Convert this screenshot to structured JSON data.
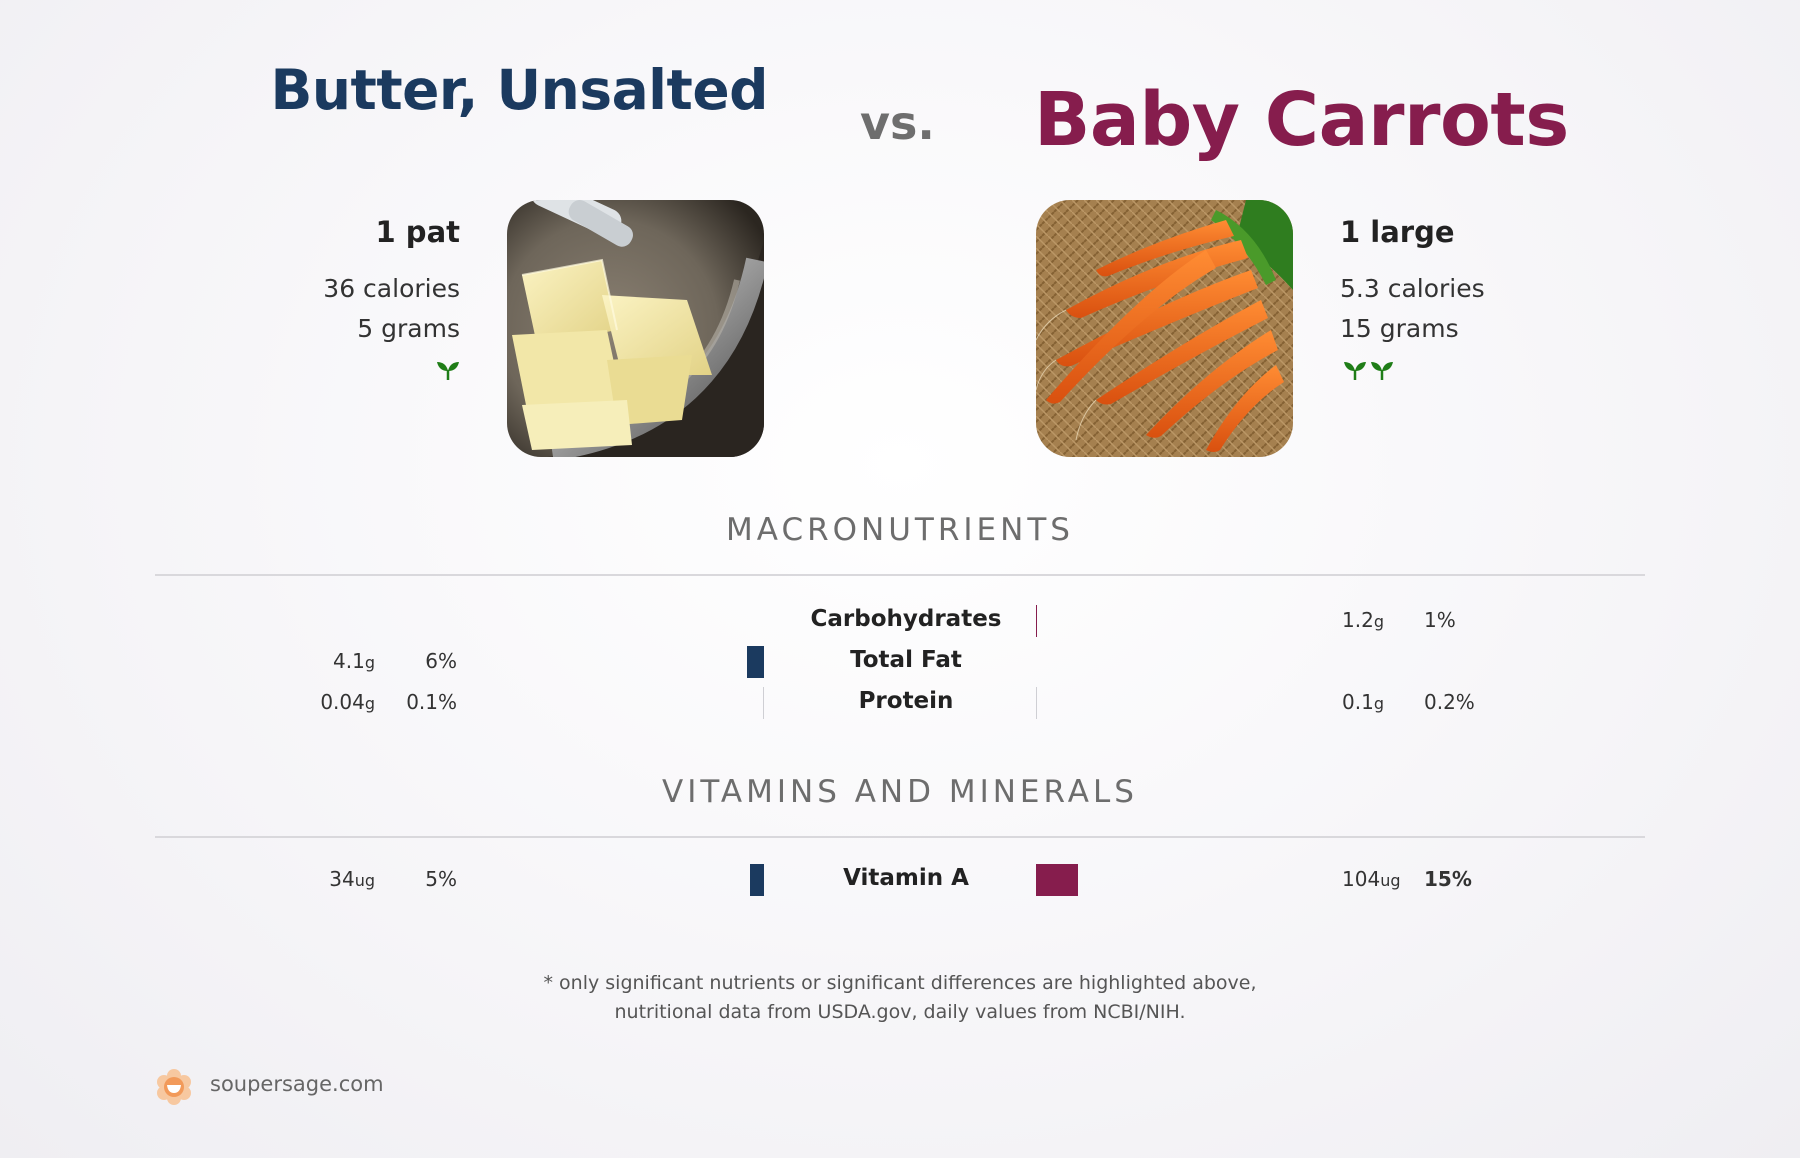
{
  "colors": {
    "left": "#1b3a5f",
    "right": "#861d4d",
    "sprout": "#1f7d17"
  },
  "left_food": {
    "title": "Butter, Unsalted",
    "serving": "1 pat",
    "calories": "36 calories",
    "grams": "5 grams",
    "sprout_count": 1,
    "photo_icon": "butter-photo"
  },
  "vs_label": "vs.",
  "right_food": {
    "title": "Baby Carrots",
    "serving": "1 large",
    "calories": "5.3 calories",
    "grams": "15 grams",
    "sprout_count": 2,
    "photo_icon": "carrots-photo"
  },
  "sections": {
    "macros_title": "MACRONUTRIENTS",
    "vitamins_title": "VITAMINS AND MINERALS"
  },
  "macros": [
    {
      "name": "Carbohydrates",
      "left_value": "",
      "left_unit": "",
      "left_pct": "",
      "left_pct_num": 0,
      "right_value": "1.2",
      "right_unit": "g",
      "right_pct": "1%",
      "right_pct_num": 1,
      "right_bold": false
    },
    {
      "name": "Total Fat",
      "left_value": "4.1",
      "left_unit": "g",
      "left_pct": "6%",
      "left_pct_num": 6,
      "right_value": "",
      "right_unit": "",
      "right_pct": "",
      "right_pct_num": 0,
      "right_bold": false
    },
    {
      "name": "Protein",
      "left_value": "0.04",
      "left_unit": "g",
      "left_pct": "0.1%",
      "left_pct_num": 0.1,
      "right_value": "0.1",
      "right_unit": "g",
      "right_pct": "0.2%",
      "right_pct_num": 0.2,
      "right_bold": false
    }
  ],
  "vitamins": [
    {
      "name": "Vitamin A",
      "left_value": "34",
      "left_unit": "ug",
      "left_pct": "5%",
      "left_pct_num": 5,
      "right_value": "104",
      "right_unit": "ug",
      "right_pct": "15%",
      "right_pct_num": 15,
      "right_bold": true
    }
  ],
  "footnote": {
    "line1": "* only significant nutrients or significant differences are highlighted above,",
    "line2": "nutritional data from USDA.gov, daily values from NCBI/NIH."
  },
  "brand": {
    "text": "soupersage.com",
    "icon": "soupersage-logo-icon"
  }
}
